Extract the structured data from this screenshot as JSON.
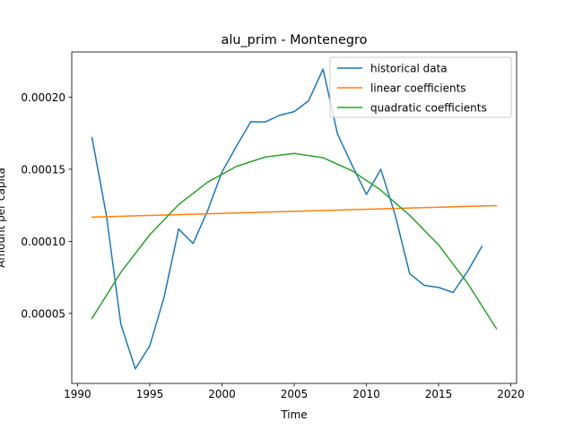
{
  "chart_data": {
    "type": "line",
    "title": "alu_prim - Montenegro",
    "xlabel": "Time",
    "ylabel": "Amount per capita",
    "xlim": [
      1989.6,
      2020.4
    ],
    "ylim": [
      1.4e-06,
      0.0002314
    ],
    "x_ticks": [
      1990,
      1995,
      2000,
      2005,
      2010,
      2015,
      2020
    ],
    "y_ticks": [
      5e-05,
      0.0001,
      0.00015,
      0.0002
    ],
    "x_tick_labels": [
      "1990",
      "1995",
      "2000",
      "2005",
      "2010",
      "2015",
      "2020"
    ],
    "y_tick_labels": [
      "0.00005",
      "0.00010",
      "0.00015",
      "0.00020"
    ],
    "legend_position": "top-right",
    "grid": false,
    "series": [
      {
        "name": "historical data",
        "color": "#1f77b4",
        "x": [
          1991,
          1992,
          1993,
          1994,
          1995,
          1996,
          1997,
          1998,
          1999,
          2000,
          2001,
          2002,
          2003,
          2004,
          2005,
          2006,
          2007,
          2008,
          2009,
          2010,
          2011,
          2012,
          2013,
          2014,
          2015,
          2016,
          2017,
          2018
        ],
        "y": [
          0.000172,
          0.000118,
          4.25e-05,
          1.15e-05,
          2.75e-05,
          6.15e-05,
          0.0001085,
          9.85e-05,
          0.000121,
          0.000148,
          0.000166,
          0.000183,
          0.0001828,
          0.0001875,
          0.00019,
          0.0001975,
          0.0002195,
          0.0001745,
          0.000153,
          0.0001325,
          0.00015,
          0.000118,
          7.75e-05,
          6.95e-05,
          6.8e-05,
          6.45e-05,
          7.9e-05,
          9.65e-05
        ]
      },
      {
        "name": "linear coefficients",
        "color": "#ff7f0e",
        "x": [
          1991,
          2019
        ],
        "y": [
          0.0001168,
          0.0001248
        ]
      },
      {
        "name": "quadratic coefficients",
        "color": "#2ca02c",
        "x": [
          1991,
          1993,
          1995,
          1997,
          1999,
          2001,
          2003,
          2005,
          2007,
          2009,
          2011,
          2013,
          2015,
          2017,
          2019
        ],
        "y": [
          4.65e-05,
          7.85e-05,
          0.0001045,
          0.0001255,
          0.000141,
          0.000152,
          0.0001585,
          0.000161,
          0.000158,
          0.000149,
          0.0001355,
          0.000118,
          9.75e-05,
          7.1e-05,
          3.95e-05
        ]
      }
    ]
  }
}
